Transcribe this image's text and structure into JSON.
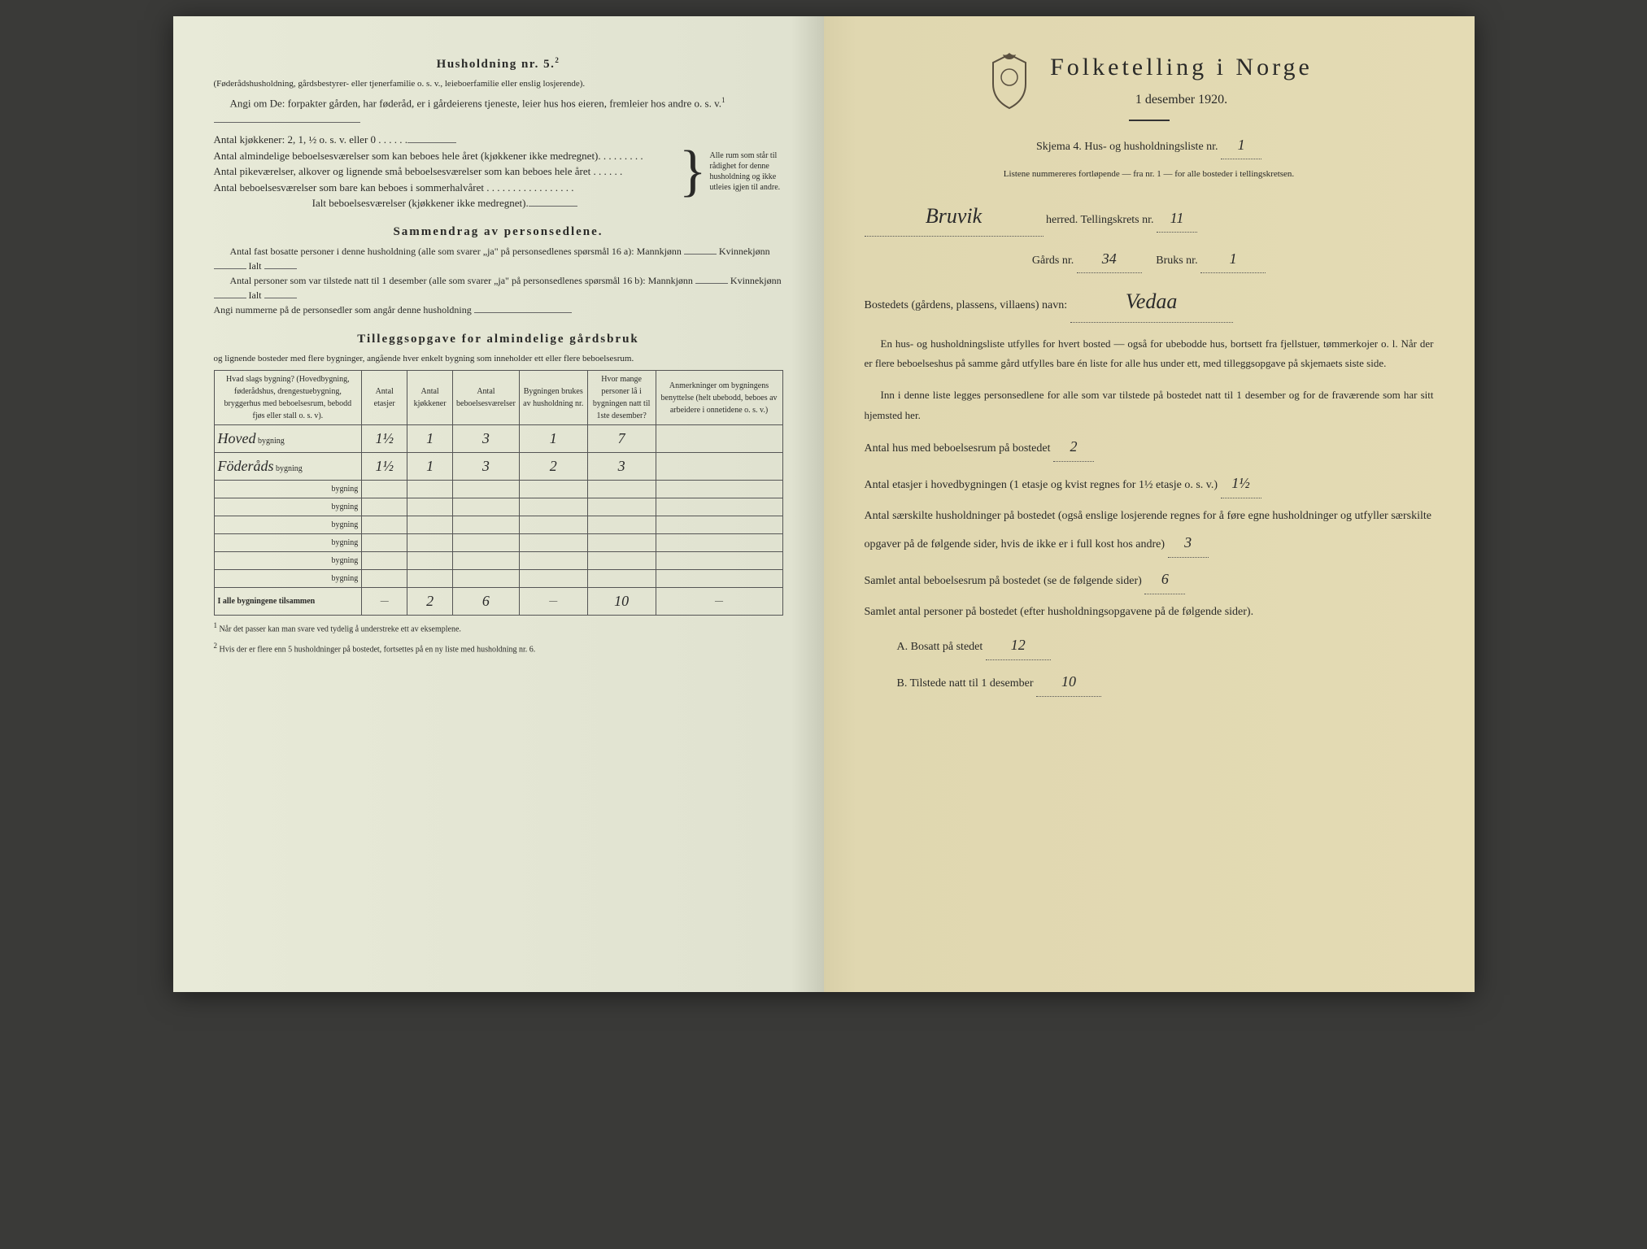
{
  "left": {
    "household_heading": "Husholdning nr. 5.",
    "household_sup": "2",
    "household_sub": "(Føderådshusholdning, gårdsbestyrer- eller tjenerfamilie o. s. v., leieboerfamilie eller enslig losjerende).",
    "angi_om": "Angi om De: forpakter gården, har føderåd, er i gårdeierens tjeneste, leier hus hos eieren, fremleier hos andre o. s. v.",
    "angi_sup": "1",
    "kitchens": "Antal kjøkkener: 2, 1, ½ o. s. v. eller 0 . . . . . .",
    "rooms1": "Antal almindelige beboelsesværelser som kan beboes hele året (kjøkkener ikke medregnet). . . . . . . . .",
    "rooms2": "Antal pikeværelser, alkover og lignende små beboelsesværelser som kan beboes hele året . . . . . .",
    "rooms3": "Antal beboelsesværelser som bare kan beboes i sommerhalvåret . . . . . . . . . . . . . . . . .",
    "rooms_total": "Ialt beboelsesværelser (kjøkkener ikke medregnet).",
    "brace_note": "Alle rum som står til rådighet for denne husholdning og ikke utleies igjen til andre.",
    "sammendrag_title": "Sammendrag av personsedlene.",
    "samm_line1": "Antal fast bosatte personer i denne husholdning (alle som svarer „ja\" på personsedlenes spørsmål 16 a): Mannkjønn",
    "kvinne": "Kvinnekjønn",
    "ialt": "Ialt",
    "samm_line2": "Antal personer som var tilstede natt til 1 desember (alle som svarer „ja\" på personsedlenes spørsmål 16 b): Mannkjønn",
    "samm_line3": "Angi nummerne på de personsedler som angår denne husholdning",
    "tilleggs_title": "Tilleggsopgave for almindelige gårdsbruk",
    "tilleggs_sub": "og lignende bosteder med flere bygninger, angående hver enkelt bygning som inneholder ett eller flere beboelsesrum.",
    "table": {
      "headers": [
        "Hvad slags bygning?\n(Hovedbygning, føderådshus, drengestue­bygning, bryggerhus med beboelsesrum, bebodd fjøs eller stall o. s. v).",
        "Antal etasjer",
        "Antal kjøkkener",
        "Antal beboelsesværelser",
        "Bygningen brukes av husholdning nr.",
        "Hvor mange personer lå i bygningen natt til 1ste desember?",
        "Anmerkninger om bygningens benyttelse (helt ubebodd, beboes av arbeidere i onnetidene o. s. v.)"
      ],
      "rows": [
        {
          "name": "Hoved",
          "etasjer": "1½",
          "kjokken": "1",
          "bebo": "3",
          "hush": "1",
          "pers": "7",
          "anm": ""
        },
        {
          "name": "Föderåds",
          "etasjer": "1½",
          "kjokken": "1",
          "bebo": "3",
          "hush": "2",
          "pers": "3",
          "anm": ""
        }
      ],
      "blank_rows": 6,
      "total_label": "I alle bygningene tilsammen",
      "totals": {
        "etasjer": "—",
        "kjokken": "2",
        "bebo": "6",
        "hush": "—",
        "pers": "10",
        "anm": "—"
      }
    },
    "footnote1": "Når det passer kan man svare ved tydelig å understreke ett av eksemplene.",
    "footnote2": "Hvis der er flere enn 5 husholdninger på bostedet, fortsettes på en ny liste med husholdning nr. 6.",
    "bygning_word": "bygning"
  },
  "right": {
    "title": "Folketelling i Norge",
    "date": "1 desember 1920.",
    "skjema": "Skjema 4.  Hus- og husholdningsliste nr.",
    "skjema_val": "1",
    "listnote": "Listene nummereres fortløpende — fra nr. 1 — for alle bosteder i tellingskretsen.",
    "herred_val": "Bruvik",
    "herred_label": "herred.   Tellingskrets nr.",
    "krets_val": "11",
    "gards_label": "Gårds nr.",
    "gards_val": "34",
    "bruks_label": "Bruks nr.",
    "bruks_val": "1",
    "bosted_label": "Bostedets (gårdens, plassens, villaens) navn:",
    "bosted_val": "Vedaa",
    "para": "En hus- og husholdningsliste utfylles for hvert bosted — også for ubebodde hus, bortsett fra fjellstuer, tømmerkojer o. l. Når der er flere beboelseshus på samme gård utfylles bare én liste for alle hus under ett, med tilleggsopgave på skjemaets siste side.",
    "para2": "Inn i denne liste legges personsedlene for alle som var tilstede på bostedet natt til 1 desember og for de fraværende som har sitt hjemsted her.",
    "q1": "Antal hus med beboelsesrum på bostedet",
    "q1_val": "2",
    "q2a": "Antal etasjer i hovedbygningen (1 etasje og kvist regnes for 1½ etasje o. s. v.)",
    "q2_val": "1½",
    "q3": "Antal særskilte husholdninger på bostedet (også enslige losjerende regnes for å føre egne husholdninger og utfyller særskilte opgaver på de følgende sider, hvis de ikke er i full kost hos andre)",
    "q3_val": "3",
    "q4": "Samlet antal beboelsesrum på bostedet (se de følgende sider)",
    "q4_val": "6",
    "q5": "Samlet antal personer på bostedet (efter husholdningsopgavene på de følgende sider).",
    "qA": "A.  Bosatt på stedet",
    "qA_val": "12",
    "qB": "B.  Tilstede natt til 1 desember",
    "qB_val": "10"
  }
}
